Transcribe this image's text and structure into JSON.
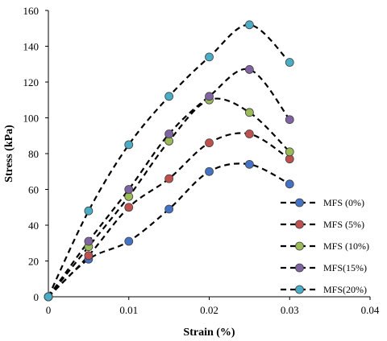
{
  "chart_data": {
    "type": "scatter",
    "xlabel": "Strain (%)",
    "ylabel": "Stress (kPa)",
    "xlim": [
      0,
      0.04
    ],
    "ylim": [
      0,
      160
    ],
    "x_ticks": [
      "0",
      "0.01",
      "0.02",
      "0.03",
      "0.04"
    ],
    "y_ticks": [
      "0",
      "20",
      "40",
      "60",
      "80",
      "100",
      "120",
      "140",
      "160"
    ],
    "grid": false,
    "line_style": "dashed smoothed",
    "legend_position": "right",
    "series": [
      {
        "name": "MFS (0%)",
        "color": "#4472c4",
        "x": [
          0,
          0.005,
          0.01,
          0.015,
          0.02,
          0.025,
          0.03
        ],
        "y": [
          0,
          21,
          31,
          49,
          70,
          74,
          63
        ]
      },
      {
        "name": "MFS (5%)",
        "color": "#c0504d",
        "x": [
          0,
          0.005,
          0.01,
          0.015,
          0.02,
          0.025,
          0.03
        ],
        "y": [
          0,
          23,
          50,
          66,
          86,
          91,
          77
        ]
      },
      {
        "name": "MFS (10%)",
        "color": "#9bbb59",
        "x": [
          0,
          0.005,
          0.01,
          0.015,
          0.02,
          0.025,
          0.03
        ],
        "y": [
          0,
          28,
          56,
          87,
          110,
          103,
          81
        ]
      },
      {
        "name": "MFS(15%)",
        "color": "#8064a2",
        "x": [
          0,
          0.005,
          0.01,
          0.015,
          0.02,
          0.025,
          0.03
        ],
        "y": [
          0,
          31,
          60,
          91,
          112,
          127,
          99
        ]
      },
      {
        "name": "MFS(20%)",
        "color": "#4bacc6",
        "x": [
          0,
          0.005,
          0.01,
          0.015,
          0.02,
          0.025,
          0.03
        ],
        "y": [
          0,
          48,
          85,
          112,
          134,
          152,
          131
        ]
      }
    ]
  }
}
